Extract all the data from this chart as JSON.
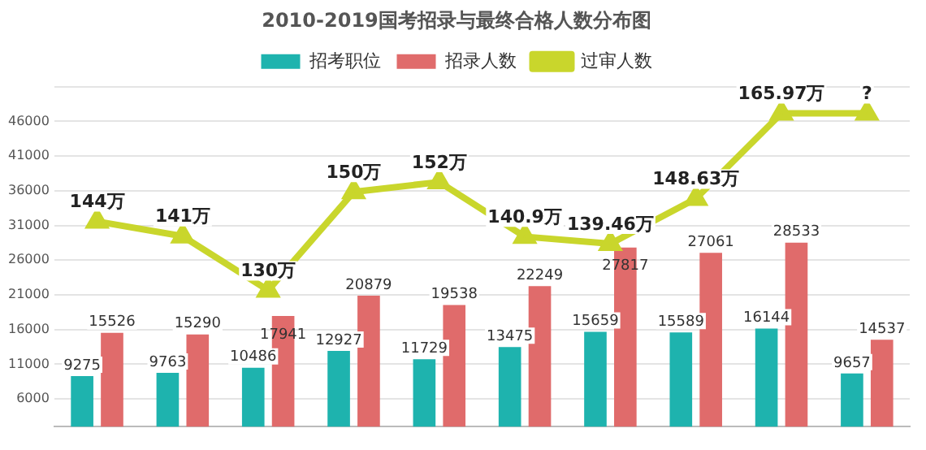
{
  "chart_data": {
    "type": "bar",
    "title": "2010-2019国考招录与最终合格人数分布图",
    "categories": [
      null,
      null,
      null,
      null,
      null,
      null,
      null,
      null,
      null,
      null
    ],
    "series": [
      {
        "name": "招考职位",
        "color": "#1eb3ae",
        "values": [
          9275,
          9763,
          10486,
          12927,
          11729,
          13475,
          15659,
          15589,
          16144,
          9657
        ]
      },
      {
        "name": "招录人数",
        "color": "#e06b6b",
        "values": [
          15526,
          15290,
          17941,
          20879,
          19538,
          22249,
          27817,
          27061,
          28533,
          14537
        ]
      },
      {
        "name": "过审人数",
        "type": "line",
        "axis": "y2",
        "color": "#c9d62c",
        "marker": "triangle",
        "values": [
          144,
          141,
          130,
          150,
          152,
          140.9,
          139.46,
          148.63,
          165.97,
          165.97
        ],
        "value_labels": [
          "144万",
          "141万",
          "130万",
          "150万",
          "152万",
          "140.9万",
          "139.46万",
          "148.63万",
          "165.97万",
          "?"
        ]
      }
    ],
    "ylim": [
      2000,
      51000
    ],
    "yticks": [
      6000,
      11000,
      16000,
      21000,
      26000,
      31000,
      36000,
      41000,
      46000,
      {
        "value": 51000,
        "label": null
      }
    ],
    "grid": "y",
    "legend": "top",
    "data_labels": true
  }
}
